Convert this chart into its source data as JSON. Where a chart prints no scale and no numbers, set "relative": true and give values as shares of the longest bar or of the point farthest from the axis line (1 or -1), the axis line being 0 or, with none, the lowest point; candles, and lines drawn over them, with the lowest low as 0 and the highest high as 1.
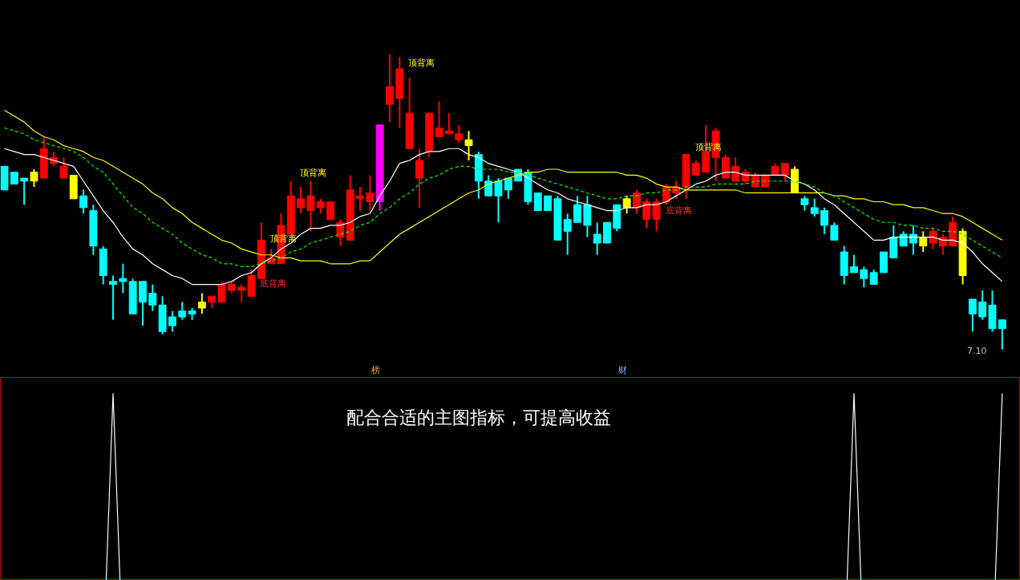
{
  "chart_data": [
    {
      "type": "candlestick",
      "relative": true,
      "tick_labels": false,
      "categories": [
        null,
        null,
        null,
        null,
        null,
        null,
        null,
        null,
        null,
        null,
        null,
        null,
        null,
        null,
        null,
        null,
        null,
        null,
        null,
        null,
        null,
        null,
        null,
        null,
        null,
        null,
        null,
        null,
        null,
        null,
        null,
        null,
        null,
        null,
        null,
        null,
        null,
        null,
        null,
        null,
        null,
        null,
        null,
        null,
        null,
        null,
        null,
        null,
        null,
        null,
        null,
        null,
        null,
        null,
        null,
        null,
        null,
        null,
        null,
        null,
        null,
        null,
        null,
        null,
        null,
        null,
        null,
        null,
        null,
        null,
        null,
        null,
        null,
        null,
        null,
        null,
        null,
        null,
        null,
        null,
        null,
        null,
        null,
        null,
        null,
        null,
        null,
        null,
        null,
        null,
        null,
        null,
        null,
        null,
        null,
        null,
        null,
        null,
        null,
        null,
        null,
        null
      ],
      "ohlc": [
        [
          0.62,
          0.62,
          0.54,
          0.54
        ],
        [
          0.6,
          0.6,
          0.56,
          0.56
        ],
        [
          0.58,
          0.58,
          0.49,
          0.57
        ],
        [
          0.57,
          0.61,
          0.55,
          0.6
        ],
        [
          0.58,
          0.72,
          0.58,
          0.68
        ],
        [
          0.63,
          0.67,
          0.62,
          0.65
        ],
        [
          0.58,
          0.65,
          0.58,
          0.62
        ],
        [
          0.59,
          0.59,
          0.51,
          0.51
        ],
        [
          0.52,
          0.54,
          0.46,
          0.48
        ],
        [
          0.47,
          0.49,
          0.32,
          0.35
        ],
        [
          0.34,
          0.35,
          0.22,
          0.25
        ],
        [
          0.23,
          0.25,
          0.1,
          0.22
        ],
        [
          0.24,
          0.29,
          0.19,
          0.23
        ],
        [
          0.23,
          0.24,
          0.12,
          0.12
        ],
        [
          0.23,
          0.23,
          0.08,
          0.16
        ],
        [
          0.19,
          0.22,
          0.13,
          0.15
        ],
        [
          0.15,
          0.18,
          0.05,
          0.06
        ],
        [
          0.11,
          0.13,
          0.06,
          0.08
        ],
        [
          0.13,
          0.16,
          0.1,
          0.11
        ],
        [
          0.13,
          0.14,
          0.1,
          0.12
        ],
        [
          0.14,
          0.19,
          0.12,
          0.16
        ],
        [
          0.16,
          0.18,
          0.14,
          0.18
        ],
        [
          0.16,
          0.23,
          0.16,
          0.22
        ],
        [
          0.2,
          0.23,
          0.19,
          0.22
        ],
        [
          0.2,
          0.22,
          0.16,
          0.21
        ],
        [
          0.18,
          0.27,
          0.18,
          0.25
        ],
        [
          0.24,
          0.43,
          0.24,
          0.37
        ],
        [
          0.29,
          0.34,
          0.29,
          0.31
        ],
        [
          0.29,
          0.46,
          0.29,
          0.42
        ],
        [
          0.39,
          0.57,
          0.39,
          0.52
        ],
        [
          0.48,
          0.55,
          0.46,
          0.51
        ],
        [
          0.47,
          0.57,
          0.4,
          0.52
        ],
        [
          0.48,
          0.51,
          0.46,
          0.5
        ],
        [
          0.44,
          0.5,
          0.44,
          0.5
        ],
        [
          0.38,
          0.44,
          0.35,
          0.43
        ],
        [
          0.37,
          0.59,
          0.37,
          0.54
        ],
        [
          0.51,
          0.55,
          0.47,
          0.52
        ],
        [
          0.5,
          0.59,
          0.47,
          0.53
        ],
        [
          0.5,
          0.76,
          0.47,
          0.76
        ],
        [
          0.83,
          1.0,
          0.77,
          0.89
        ],
        [
          0.85,
          0.99,
          0.75,
          0.95
        ],
        [
          0.68,
          0.92,
          0.68,
          0.8
        ],
        [
          0.58,
          0.68,
          0.48,
          0.64
        ],
        [
          0.67,
          0.8,
          0.65,
          0.8
        ],
        [
          0.72,
          0.84,
          0.72,
          0.75
        ],
        [
          0.73,
          0.8,
          0.73,
          0.74
        ],
        [
          0.71,
          0.76,
          0.7,
          0.73
        ],
        [
          0.71,
          0.74,
          0.64,
          0.69
        ],
        [
          0.66,
          0.67,
          0.51,
          0.57
        ],
        [
          0.57,
          0.59,
          0.52,
          0.52
        ],
        [
          0.57,
          0.58,
          0.43,
          0.52
        ],
        [
          0.58,
          0.58,
          0.51,
          0.54
        ],
        [
          0.61,
          0.61,
          0.57,
          0.57
        ],
        [
          0.6,
          0.61,
          0.49,
          0.5
        ],
        [
          0.53,
          0.53,
          0.47,
          0.47
        ],
        [
          0.52,
          0.52,
          0.47,
          0.47
        ],
        [
          0.51,
          0.52,
          0.37,
          0.37
        ],
        [
          0.44,
          0.46,
          0.32,
          0.4
        ],
        [
          0.49,
          0.52,
          0.43,
          0.43
        ],
        [
          0.49,
          0.52,
          0.38,
          0.42
        ],
        [
          0.39,
          0.43,
          0.32,
          0.36
        ],
        [
          0.43,
          0.43,
          0.36,
          0.36
        ],
        [
          0.49,
          0.49,
          0.4,
          0.41
        ],
        [
          0.48,
          0.52,
          0.46,
          0.51
        ],
        [
          0.48,
          0.54,
          0.46,
          0.53
        ],
        [
          0.44,
          0.51,
          0.41,
          0.5
        ],
        [
          0.44,
          0.51,
          0.4,
          0.5
        ],
        [
          0.5,
          0.56,
          0.49,
          0.55
        ],
        [
          0.53,
          0.57,
          0.51,
          0.55
        ],
        [
          0.55,
          0.66,
          0.51,
          0.66
        ],
        [
          0.59,
          0.64,
          0.59,
          0.63
        ],
        [
          0.6,
          0.76,
          0.6,
          0.67
        ],
        [
          0.65,
          0.75,
          0.57,
          0.74
        ],
        [
          0.58,
          0.66,
          0.58,
          0.65
        ],
        [
          0.57,
          0.65,
          0.57,
          0.62
        ],
        [
          0.57,
          0.61,
          0.56,
          0.6
        ],
        [
          0.55,
          0.6,
          0.55,
          0.59
        ],
        [
          0.55,
          0.59,
          0.55,
          0.59
        ],
        [
          0.59,
          0.63,
          0.59,
          0.62
        ],
        [
          0.59,
          0.63,
          0.57,
          0.63
        ],
        [
          0.61,
          0.62,
          0.53,
          0.53
        ],
        [
          0.51,
          0.52,
          0.47,
          0.49
        ],
        [
          0.48,
          0.51,
          0.45,
          0.46
        ],
        [
          0.47,
          0.48,
          0.39,
          0.42
        ],
        [
          0.42,
          0.43,
          0.37,
          0.37
        ],
        [
          0.33,
          0.35,
          0.22,
          0.25
        ],
        [
          0.28,
          0.32,
          0.26,
          0.26
        ],
        [
          0.27,
          0.28,
          0.21,
          0.24
        ],
        [
          0.26,
          0.27,
          0.22,
          0.22
        ],
        [
          0.33,
          0.33,
          0.26,
          0.26
        ],
        [
          0.38,
          0.42,
          0.31,
          0.31
        ],
        [
          0.39,
          0.4,
          0.35,
          0.35
        ],
        [
          0.39,
          0.42,
          0.32,
          0.36
        ],
        [
          0.35,
          0.4,
          0.33,
          0.38
        ],
        [
          0.36,
          0.41,
          0.34,
          0.4
        ],
        [
          0.35,
          0.39,
          0.32,
          0.38
        ],
        [
          0.35,
          0.45,
          0.35,
          0.43
        ],
        [
          0.4,
          0.41,
          0.22,
          0.25
        ],
        [
          0.17,
          0.17,
          0.06,
          0.12
        ],
        [
          0.16,
          0.2,
          0.1,
          0.11
        ],
        [
          0.15,
          0.2,
          0.06,
          0.07
        ],
        [
          0.1,
          0.1,
          0.0,
          0.07
        ]
      ],
      "colors": [
        "#00ffff",
        "#00ffff",
        "#00ffff",
        "#ffff00",
        "#ff0000",
        "#ff0000",
        "#ff0000",
        "#ffff00",
        "#00ffff",
        "#00ffff",
        "#00ffff",
        "#00ffff",
        "#00ffff",
        "#00ffff",
        "#00ffff",
        "#00ffff",
        "#00ffff",
        "#00ffff",
        "#00ffff",
        "#00ffff",
        "#ffff00",
        "#ff0000",
        "#ff0000",
        "#ff0000",
        "#ff0000",
        "#ff0000",
        "#ff0000",
        "#ff0000",
        "#ff0000",
        "#ff0000",
        "#ff0000",
        "#ff0000",
        "#ff0000",
        "#ff0000",
        "#ff0000",
        "#ff0000",
        "#ff0000",
        "#ff0000",
        "#ff00ff",
        "#ff0000",
        "#ff0000",
        "#ff0000",
        "#ff0000",
        "#ff0000",
        "#ff0000",
        "#ff0000",
        "#ff0000",
        "#ffff00",
        "#00ffff",
        "#00ffff",
        "#00ffff",
        "#00ffff",
        "#00ffff",
        "#00ffff",
        "#00ffff",
        "#00ffff",
        "#00ffff",
        "#00ffff",
        "#00ffff",
        "#00ffff",
        "#00ffff",
        "#00ffff",
        "#00ffff",
        "#ffff00",
        "#ff0000",
        "#ff0000",
        "#ff0000",
        "#ff0000",
        "#ff0000",
        "#ff0000",
        "#ff0000",
        "#ff0000",
        "#ff0000",
        "#ff0000",
        "#ff0000",
        "#ff0000",
        "#ff0000",
        "#ff0000",
        "#ff0000",
        "#ff0000",
        "#ffff00",
        "#00ffff",
        "#00ffff",
        "#00ffff",
        "#00ffff",
        "#00ffff",
        "#00ffff",
        "#00ffff",
        "#00ffff",
        "#00ffff",
        "#00ffff",
        "#00ffff",
        "#00ffff",
        "#ffff00",
        "#ff0000",
        "#ff0000",
        "#ff0000",
        "#ffff00",
        "#00ffff",
        "#00ffff",
        "#00ffff",
        "#00ffff"
      ],
      "series": [
        {
          "type": "line",
          "color": "#ffffff",
          "values": [
            0.68,
            0.67,
            0.66,
            0.66,
            0.65,
            0.64,
            0.63,
            0.62,
            0.57,
            0.52,
            0.47,
            0.43,
            0.38,
            0.34,
            0.32,
            0.29,
            0.27,
            0.25,
            0.24,
            0.22,
            0.22,
            0.22,
            0.22,
            0.23,
            0.25,
            0.26,
            0.29,
            0.31,
            0.34,
            0.36,
            0.39,
            0.41,
            0.41,
            0.42,
            0.42,
            0.43,
            0.45,
            0.46,
            0.52,
            0.57,
            0.63,
            0.64,
            0.66,
            0.67,
            0.67,
            0.68,
            0.68,
            0.66,
            0.65,
            0.63,
            0.62,
            0.61,
            0.6,
            0.58,
            0.56,
            0.54,
            0.53,
            0.51,
            0.5,
            0.49,
            0.48,
            0.47,
            0.47,
            0.48,
            0.48,
            0.49,
            0.49,
            0.5,
            0.52,
            0.54,
            0.56,
            0.57,
            0.59,
            0.6,
            0.6,
            0.59,
            0.59,
            0.59,
            0.59,
            0.59,
            0.57,
            0.56,
            0.54,
            0.51,
            0.49,
            0.46,
            0.43,
            0.4,
            0.37,
            0.37,
            0.38,
            0.38,
            0.38,
            0.38,
            0.38,
            0.37,
            0.37,
            0.36,
            0.33,
            0.29,
            0.26,
            0.23
          ]
        },
        {
          "type": "line",
          "color": "#ffff00",
          "values": [
            0.81,
            0.79,
            0.77,
            0.74,
            0.72,
            0.71,
            0.69,
            0.68,
            0.67,
            0.65,
            0.64,
            0.62,
            0.6,
            0.58,
            0.56,
            0.53,
            0.51,
            0.48,
            0.46,
            0.43,
            0.41,
            0.39,
            0.37,
            0.36,
            0.34,
            0.33,
            0.32,
            0.32,
            0.31,
            0.31,
            0.3,
            0.3,
            0.3,
            0.29,
            0.29,
            0.29,
            0.3,
            0.3,
            0.33,
            0.36,
            0.39,
            0.41,
            0.43,
            0.45,
            0.47,
            0.49,
            0.51,
            0.53,
            0.54,
            0.56,
            0.57,
            0.58,
            0.59,
            0.6,
            0.6,
            0.61,
            0.61,
            0.6,
            0.6,
            0.6,
            0.6,
            0.6,
            0.6,
            0.59,
            0.59,
            0.58,
            0.56,
            0.55,
            0.55,
            0.54,
            0.54,
            0.54,
            0.54,
            0.54,
            0.54,
            0.53,
            0.53,
            0.53,
            0.53,
            0.53,
            0.53,
            0.53,
            0.53,
            0.53,
            0.52,
            0.52,
            0.51,
            0.51,
            0.5,
            0.5,
            0.49,
            0.49,
            0.48,
            0.48,
            0.47,
            0.46,
            0.46,
            0.45,
            0.43,
            0.41,
            0.39,
            0.37
          ]
        },
        {
          "type": "line",
          "color": "#00ff00",
          "line_style": "dashed",
          "values": [
            0.75,
            0.74,
            0.73,
            0.71,
            0.7,
            0.69,
            0.68,
            0.67,
            0.65,
            0.62,
            0.6,
            0.56,
            0.52,
            0.48,
            0.46,
            0.43,
            0.41,
            0.39,
            0.36,
            0.34,
            0.32,
            0.31,
            0.29,
            0.29,
            0.28,
            0.28,
            0.29,
            0.3,
            0.31,
            0.33,
            0.34,
            0.36,
            0.37,
            0.38,
            0.39,
            0.4,
            0.42,
            0.43,
            0.46,
            0.48,
            0.51,
            0.53,
            0.56,
            0.58,
            0.59,
            0.61,
            0.62,
            0.62,
            0.61,
            0.61,
            0.61,
            0.6,
            0.6,
            0.59,
            0.58,
            0.57,
            0.56,
            0.55,
            0.54,
            0.53,
            0.52,
            0.51,
            0.51,
            0.52,
            0.52,
            0.53,
            0.53,
            0.54,
            0.54,
            0.55,
            0.55,
            0.55,
            0.56,
            0.56,
            0.56,
            0.56,
            0.57,
            0.57,
            0.57,
            0.57,
            0.57,
            0.56,
            0.55,
            0.53,
            0.52,
            0.5,
            0.48,
            0.46,
            0.44,
            0.43,
            0.43,
            0.42,
            0.42,
            0.41,
            0.41,
            0.4,
            0.4,
            0.39,
            0.37,
            0.35,
            0.33,
            0.31
          ]
        }
      ],
      "annotations": [
        "顶背离",
        "顶背离",
        "顶背离",
        "顶背离",
        "底背离",
        "底背离",
        "榜",
        "财",
        "7.10"
      ]
    },
    {
      "type": "line",
      "relative": true,
      "tick_labels": false,
      "categories": [
        null,
        null,
        null,
        null,
        null,
        null,
        null,
        null,
        null,
        null,
        null,
        null,
        null,
        null,
        null,
        null,
        null,
        null,
        null,
        null,
        null,
        null,
        null,
        null,
        null,
        null,
        null,
        null,
        null,
        null,
        null,
        null,
        null,
        null,
        null,
        null,
        null,
        null,
        null,
        null,
        null,
        null,
        null,
        null,
        null,
        null,
        null,
        null,
        null,
        null,
        null,
        null,
        null,
        null,
        null,
        null,
        null,
        null,
        null,
        null,
        null,
        null,
        null,
        null,
        null,
        null,
        null,
        null,
        null,
        null,
        null,
        null,
        null,
        null,
        null,
        null,
        null,
        null,
        null,
        null,
        null,
        null,
        null,
        null,
        null,
        null,
        null,
        null,
        null,
        null,
        null,
        null,
        null,
        null,
        null,
        null,
        null,
        null,
        null,
        null,
        null,
        null
      ],
      "series": [
        {
          "color": "#ffffff",
          "values": [
            null,
            null,
            null,
            null,
            null,
            null,
            null,
            null,
            null,
            null,
            0,
            1,
            0,
            null,
            null,
            null,
            null,
            null,
            null,
            null,
            null,
            null,
            null,
            null,
            null,
            null,
            null,
            null,
            null,
            null,
            null,
            null,
            null,
            null,
            null,
            null,
            null,
            null,
            null,
            null,
            null,
            null,
            null,
            null,
            null,
            null,
            null,
            null,
            null,
            null,
            null,
            null,
            null,
            null,
            null,
            null,
            null,
            null,
            null,
            null,
            null,
            null,
            null,
            null,
            null,
            null,
            null,
            null,
            null,
            null,
            null,
            null,
            null,
            null,
            null,
            null,
            null,
            null,
            null,
            null,
            null,
            null,
            null,
            null,
            null,
            0,
            1,
            0,
            null,
            null,
            null,
            null,
            null,
            null,
            null,
            null,
            null,
            null,
            null,
            null,
            0,
            1
          ]
        }
      ],
      "annotations": [
        "配合合适的主图指标，可提高收益"
      ]
    }
  ]
}
